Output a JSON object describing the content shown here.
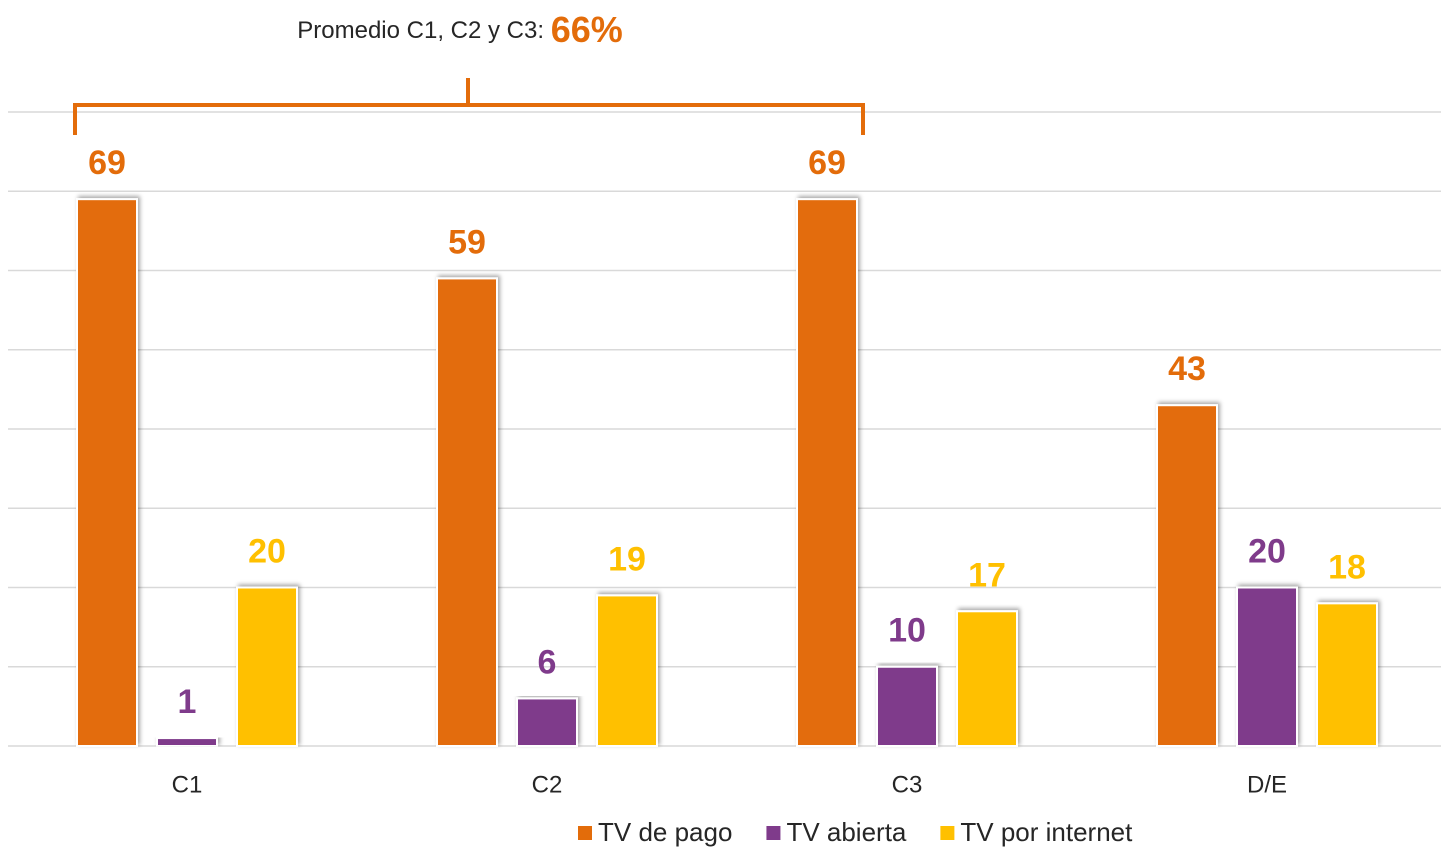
{
  "chart_data": {
    "type": "bar",
    "annotation": {
      "text": "Promedio C1, C2 y C3:",
      "highlight": "66%",
      "color": "#e36c0a"
    },
    "categories": [
      "C1",
      "C2",
      "C3",
      "D/E"
    ],
    "series": [
      {
        "name": "TV de pago",
        "color": "#e36c0a",
        "values": [
          69,
          59,
          69,
          43
        ]
      },
      {
        "name": "TV abierta",
        "color": "#7f3b8b",
        "values": [
          1,
          6,
          10,
          20
        ]
      },
      {
        "name": "TV por internet",
        "color": "#ffc000",
        "values": [
          20,
          19,
          17,
          18
        ]
      }
    ],
    "ylim": [
      0,
      80
    ],
    "yticks": [
      0,
      10,
      20,
      30,
      40,
      50,
      60,
      70,
      80
    ],
    "grid": true,
    "legend": "bottom"
  }
}
